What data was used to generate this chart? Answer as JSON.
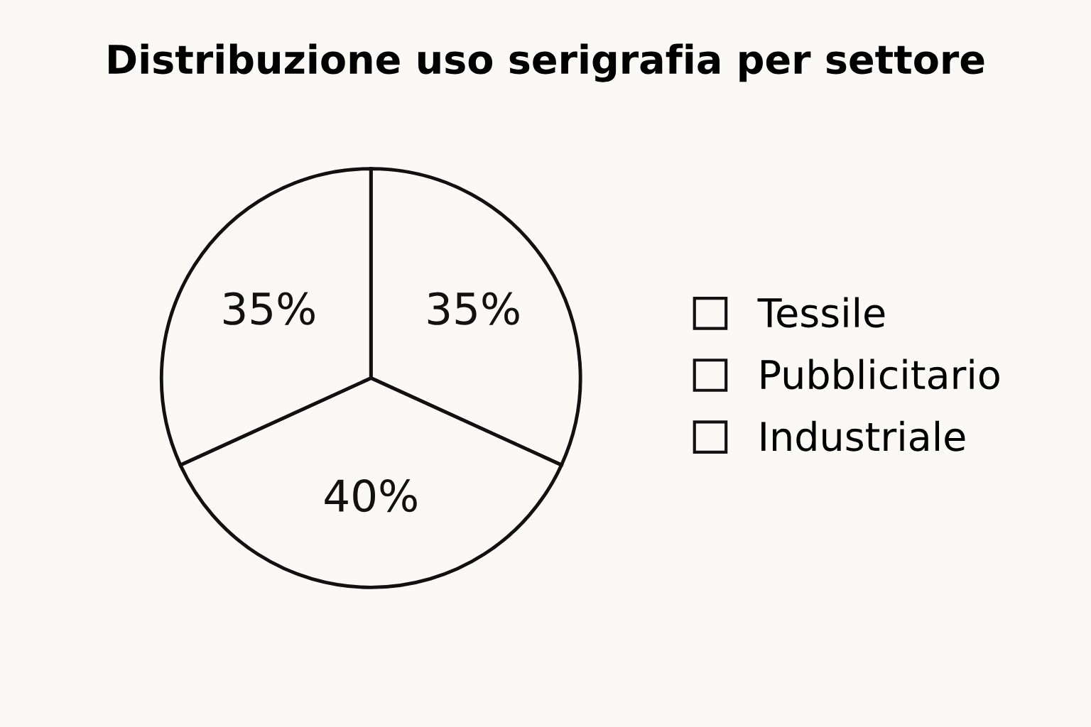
{
  "chart_data": {
    "type": "pie",
    "title": "Distribuzione uso serigrafia per settore",
    "categories": [
      "Tessile",
      "Pubblicitario",
      "Industriale"
    ],
    "values": [
      35,
      40,
      35
    ],
    "colors": [
      "#faf9f6",
      "#faf9f6",
      "#faf9f6"
    ],
    "value_labels": [
      "35%",
      "40%",
      "35%"
    ],
    "legend": "right"
  }
}
